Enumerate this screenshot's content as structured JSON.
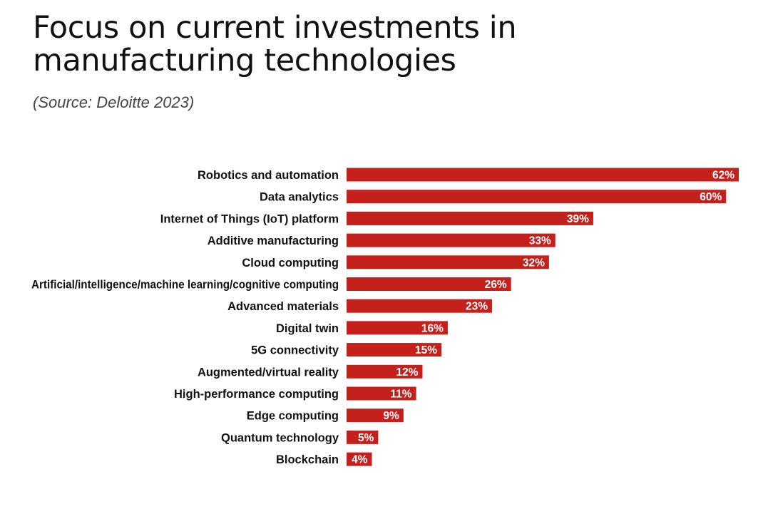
{
  "header": {
    "title": "Focus on current investments in manufacturing technologies",
    "subtitle": "(Source: Deloitte 2023)"
  },
  "colors": {
    "bar": "#c4201c",
    "label": "#111111",
    "value_label": "#ffffff"
  },
  "chart_data": {
    "type": "bar",
    "orientation": "horizontal",
    "title": "Focus on current investments in manufacturing technologies",
    "subtitle": "(Source: Deloitte 2023)",
    "categories": [
      "Robotics and automation",
      "Data analytics",
      "Internet of Things (IoT) platform",
      "Additive manufacturing",
      "Cloud computing",
      "Artificial/intelligence/machine learning/cognitive computing",
      "Advanced materials",
      "Digital twin",
      "5G connectivity",
      "Augmented/virtual reality",
      "High-performance computing",
      "Edge computing",
      "Quantum technology",
      "Blockchain"
    ],
    "values": [
      62,
      60,
      39,
      33,
      32,
      26,
      23,
      16,
      15,
      12,
      11,
      9,
      5,
      4
    ],
    "value_labels": [
      "62%",
      "60%",
      "39%",
      "33%",
      "32%",
      "26%",
      "23%",
      "16%",
      "15%",
      "12%",
      "11%",
      "9%",
      "5%",
      "4%"
    ],
    "unit": "%",
    "xlabel": "",
    "ylabel": "",
    "xlim": [
      0,
      62
    ],
    "grid": false,
    "legend": "none"
  }
}
